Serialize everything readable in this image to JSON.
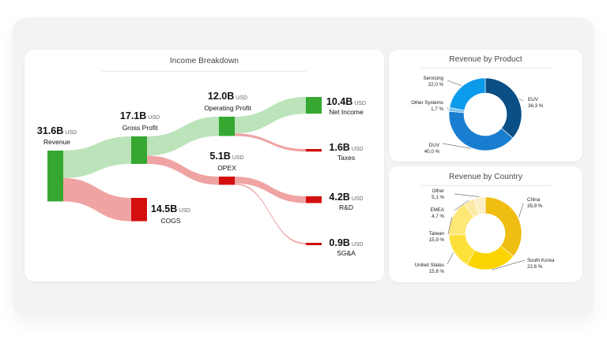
{
  "income": {
    "title": "Income Breakdown",
    "nodes": [
      {
        "id": "revenue",
        "value": "31.6B",
        "unit": "USD",
        "label": "Revenue",
        "color": "#36a832"
      },
      {
        "id": "gross_profit",
        "value": "17.1B",
        "unit": "USD",
        "label": "Gross Profit",
        "color": "#36a832"
      },
      {
        "id": "cogs",
        "value": "14.5B",
        "unit": "USD",
        "label": "COGS",
        "color": "#d40f0f"
      },
      {
        "id": "operating_profit",
        "value": "12.0B",
        "unit": "USD",
        "label": "Operating Profit",
        "color": "#36a832"
      },
      {
        "id": "opex",
        "value": "5.1B",
        "unit": "USD",
        "label": "OPEX",
        "color": "#d40f0f"
      },
      {
        "id": "net_income",
        "value": "10.4B",
        "unit": "USD",
        "label": "Net Income",
        "color": "#36a832"
      },
      {
        "id": "taxes",
        "value": "1.6B",
        "unit": "USD",
        "label": "Taxes",
        "color": "#d40f0f"
      },
      {
        "id": "rnd",
        "value": "4.2B",
        "unit": "USD",
        "label": "R&D",
        "color": "#d40f0f"
      },
      {
        "id": "sga",
        "value": "0.9B",
        "unit": "USD",
        "label": "SG&A",
        "color": "#d40f0f"
      }
    ]
  },
  "product": {
    "title": "Revenue by Product",
    "slices": [
      {
        "name": "EUV",
        "pct": "36,3 %",
        "value": 36.3,
        "color": "#0a4f86"
      },
      {
        "name": "DUV",
        "pct": "40,0 %",
        "value": 40.0,
        "color": "#1a7ed0"
      },
      {
        "name": "Other Systems",
        "pct": "1,7 %",
        "value": 1.7,
        "color": "#7ec3f0"
      },
      {
        "name": "Servicing",
        "pct": "22,0 %",
        "value": 22.0,
        "color": "#0c9bea"
      }
    ]
  },
  "country": {
    "title": "Revenue by Country",
    "slices": [
      {
        "name": "China",
        "pct": "35,9 %",
        "value": 35.9,
        "color": "#f0be12"
      },
      {
        "name": "South Korea",
        "pct": "22,6 %",
        "value": 22.6,
        "color": "#fcd400"
      },
      {
        "name": "United States",
        "pct": "15,8 %",
        "value": 15.8,
        "color": "#fee03a"
      },
      {
        "name": "Taiwan",
        "pct": "15,9 %",
        "value": 15.9,
        "color": "#fde777"
      },
      {
        "name": "EMEA",
        "pct": "4,7 %",
        "value": 4.7,
        "color": "#fde9a6"
      },
      {
        "name": "Other",
        "pct": "5,1 %",
        "value": 5.1,
        "color": "#fdf0c8"
      }
    ]
  },
  "chart_data": [
    {
      "type": "sankey",
      "title": "Income Breakdown",
      "unit": "B USD",
      "nodes": [
        "Revenue",
        "Gross Profit",
        "COGS",
        "Operating Profit",
        "OPEX",
        "Net Income",
        "Taxes",
        "R&D",
        "SG&A"
      ],
      "links": [
        {
          "source": "Revenue",
          "target": "Gross Profit",
          "value": 17.1
        },
        {
          "source": "Revenue",
          "target": "COGS",
          "value": 14.5
        },
        {
          "source": "Gross Profit",
          "target": "Operating Profit",
          "value": 12.0
        },
        {
          "source": "Gross Profit",
          "target": "OPEX",
          "value": 5.1
        },
        {
          "source": "Operating Profit",
          "target": "Net Income",
          "value": 10.4
        },
        {
          "source": "Operating Profit",
          "target": "Taxes",
          "value": 1.6
        },
        {
          "source": "OPEX",
          "target": "R&D",
          "value": 4.2
        },
        {
          "source": "OPEX",
          "target": "SG&A",
          "value": 0.9
        }
      ]
    },
    {
      "type": "pie",
      "title": "Revenue by Product",
      "categories": [
        "EUV",
        "DUV",
        "Other Systems",
        "Servicing"
      ],
      "values": [
        36.3,
        40.0,
        1.7,
        22.0
      ]
    },
    {
      "type": "pie",
      "title": "Revenue by Country",
      "categories": [
        "China",
        "South Korea",
        "United States",
        "Taiwan",
        "EMEA",
        "Other"
      ],
      "values": [
        35.9,
        22.6,
        15.8,
        15.9,
        4.7,
        5.1
      ]
    }
  ]
}
